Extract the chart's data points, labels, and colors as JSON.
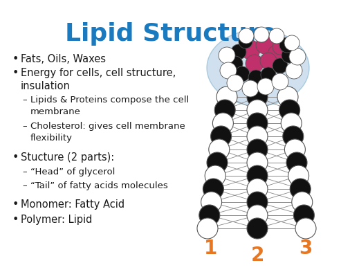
{
  "title": "Lipid Structure",
  "title_color": "#1a7abf",
  "title_fontsize": 26,
  "background_color": "#ffffff",
  "bullet_points": [
    {
      "level": 0,
      "text": "Fats, Oils, Waxes"
    },
    {
      "level": 0,
      "text": "Energy for cells, cell structure,\ninsulation"
    },
    {
      "level": 1,
      "text": "Lipids & Proteins compose the cell\nmembrane"
    },
    {
      "level": 1,
      "text": "Cholesterol: gives cell membrane\nflexibility"
    },
    {
      "level": 0,
      "text": "Stucture (2 parts):"
    },
    {
      "level": 1,
      "text": "“Head” of glycerol"
    },
    {
      "level": 1,
      "text": "“Tail” of fatty acids molecules"
    },
    {
      "level": 0,
      "text": "Monomer: Fatty Acid"
    },
    {
      "level": 0,
      "text": "Polymer: Lipid"
    }
  ],
  "bullet_fontsize": 10.5,
  "sub_bullet_fontsize": 9.5,
  "text_color": "#1a1a1a",
  "numbers": [
    "1",
    "2",
    "3"
  ],
  "number_color": "#e87722",
  "number_fontsize": 20,
  "head_circle_color": "#aac8e0",
  "pink_color": "#c0306a",
  "dark_color": "#111111",
  "white_color": "#ffffff",
  "circle_edge_color": "#555555",
  "gray_line_color": "#888888"
}
